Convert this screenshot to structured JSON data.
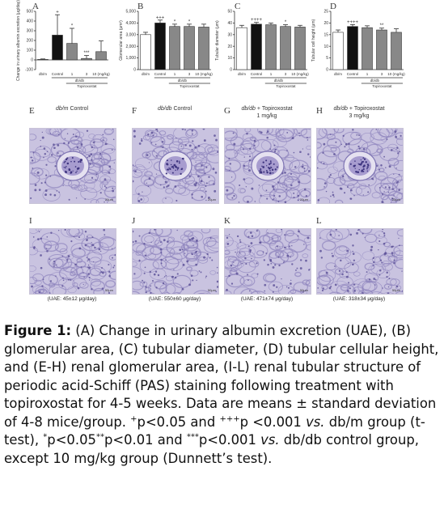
{
  "panels": {
    "chart_letters": [
      "A",
      "B",
      "C",
      "D"
    ],
    "micro_letters_top": [
      "E",
      "F",
      "G",
      "H"
    ],
    "micro_letters_bottom": [
      "I",
      "J",
      "K",
      "L"
    ]
  },
  "chart_data": [
    {
      "type": "bar",
      "panel": "A",
      "ylabel": "Change in urinary albumin excretion (μg/day)",
      "yticks": [
        "500",
        "400",
        "300",
        "200",
        "100",
        "0",
        "-100"
      ],
      "ylim": [
        -100,
        500
      ],
      "categories": [
        "db/m",
        "Control",
        "1",
        "3",
        "10 (mg/kg)"
      ],
      "values": [
        5,
        255,
        170,
        15,
        85
      ],
      "errors": [
        5,
        210,
        155,
        30,
        110
      ],
      "fills": [
        "#ffffff",
        "#111111",
        "#888888",
        "#888888",
        "#888888"
      ],
      "stars": [
        "",
        "+",
        "*",
        "***",
        ""
      ],
      "group_label_db": "db/db",
      "group_label_drug": "Topiroxostat"
    },
    {
      "type": "bar",
      "panel": "B",
      "ylabel": "Glomerular area (μm²)",
      "yticks": [
        "5,000",
        "4,000",
        "3,000",
        "2,000",
        "1,000",
        "0"
      ],
      "ylim": [
        0,
        5000
      ],
      "categories": [
        "db/m",
        "Control",
        "1",
        "3",
        "10 (mg/kg)"
      ],
      "values": [
        3000,
        4000,
        3700,
        3700,
        3650
      ],
      "errors": [
        200,
        250,
        200,
        200,
        250
      ],
      "fills": [
        "#ffffff",
        "#111111",
        "#888888",
        "#888888",
        "#888888"
      ],
      "stars": [
        "",
        "+++",
        "*",
        "*",
        ""
      ],
      "group_label_db": "db/db",
      "group_label_drug": "Topiroxostat"
    },
    {
      "type": "bar",
      "panel": "C",
      "ylabel": "Tubular diameter (μm)",
      "yticks": [
        "50",
        "40",
        "30",
        "20",
        "10",
        "0"
      ],
      "ylim": [
        0,
        50
      ],
      "categories": [
        "db/m",
        "Control",
        "1",
        "3",
        "10 (mg/kg)"
      ],
      "values": [
        36,
        39,
        38.5,
        37,
        36.5
      ],
      "errors": [
        2,
        1.5,
        1.5,
        1.5,
        1.5
      ],
      "fills": [
        "#ffffff",
        "#111111",
        "#888888",
        "#888888",
        "#888888"
      ],
      "stars": [
        "",
        "++++",
        "",
        "*",
        ""
      ],
      "group_label_db": "db/db",
      "group_label_drug": "Topiroxostat"
    },
    {
      "type": "bar",
      "panel": "D",
      "ylabel": "Tubular cell height (μm)",
      "yticks": [
        "25",
        "20",
        "15",
        "10",
        "5",
        "0"
      ],
      "ylim": [
        0,
        25
      ],
      "categories": [
        "db/m",
        "Control",
        "1",
        "3",
        "10 (mg/kg)"
      ],
      "values": [
        16,
        18.5,
        18,
        17,
        16
      ],
      "errors": [
        1,
        0.8,
        0.8,
        0.8,
        1.5
      ],
      "fills": [
        "#ffffff",
        "#111111",
        "#888888",
        "#888888",
        "#888888"
      ],
      "stars": [
        "",
        "++++",
        "",
        "**",
        ""
      ],
      "group_label_db": "db/db",
      "group_label_drug": "Topiroxostat"
    }
  ],
  "micrographs_top": [
    {
      "letter": "E",
      "title_italic": "db/m",
      "title_rest": " Control",
      "title_line2": "",
      "scale": "20μm"
    },
    {
      "letter": "F",
      "title_italic": "db/db",
      "title_rest": " Control",
      "title_line2": "",
      "scale": "20μm"
    },
    {
      "letter": "G",
      "title_italic": "db/db",
      "title_rest": " + Topiroxostat",
      "title_line2": "1 mg/kg",
      "scale": "20μm"
    },
    {
      "letter": "H",
      "title_italic": "db/db",
      "title_rest": " + Topiroxostat",
      "title_line2": "3 mg/kg",
      "scale": "20μm"
    }
  ],
  "micrographs_bottom": [
    {
      "letter": "I",
      "uae": "(UAE: 45±12 μg/day)",
      "scale": "50μm"
    },
    {
      "letter": "J",
      "uae": "(UAE: 550±60 μg/day)",
      "scale": "50μm"
    },
    {
      "letter": "K",
      "uae": "(UAE: 471±74 μg/day)",
      "scale": "50μm"
    },
    {
      "letter": "L",
      "uae": "(UAE: 318±34 μg/day)",
      "scale": "50μm"
    }
  ],
  "caption": {
    "label": "Figure 1:",
    "text1": " (A) Change in urinary albumin excretion (UAE), (B) glomerular area, (C) tubular diameter, (D) tubular cellular height, and (E-H) renal glomerular area, (I-L) renal tubular structure of periodic acid-Schiff (PAS) staining following treatment with topiroxostat for 4-5 weeks. Data are means ± standard deviation of 4-8 mice/group. ",
    "sup1": "+",
    "text2": "p<0.05 and ",
    "sup2": "+++",
    "text3": "p <0.001 ",
    "vs1": "vs.",
    "text4": " db/m group (t-test), ",
    "sup3": "*",
    "text5": "p<0.05",
    "sup4": "**",
    "text6": "p<0.01 and ",
    "sup5": "***",
    "text7": "p<0.001 ",
    "vs2": "vs.",
    "text8": " db/db control group, except 10 mg/kg group (Dunnett’s test)."
  }
}
